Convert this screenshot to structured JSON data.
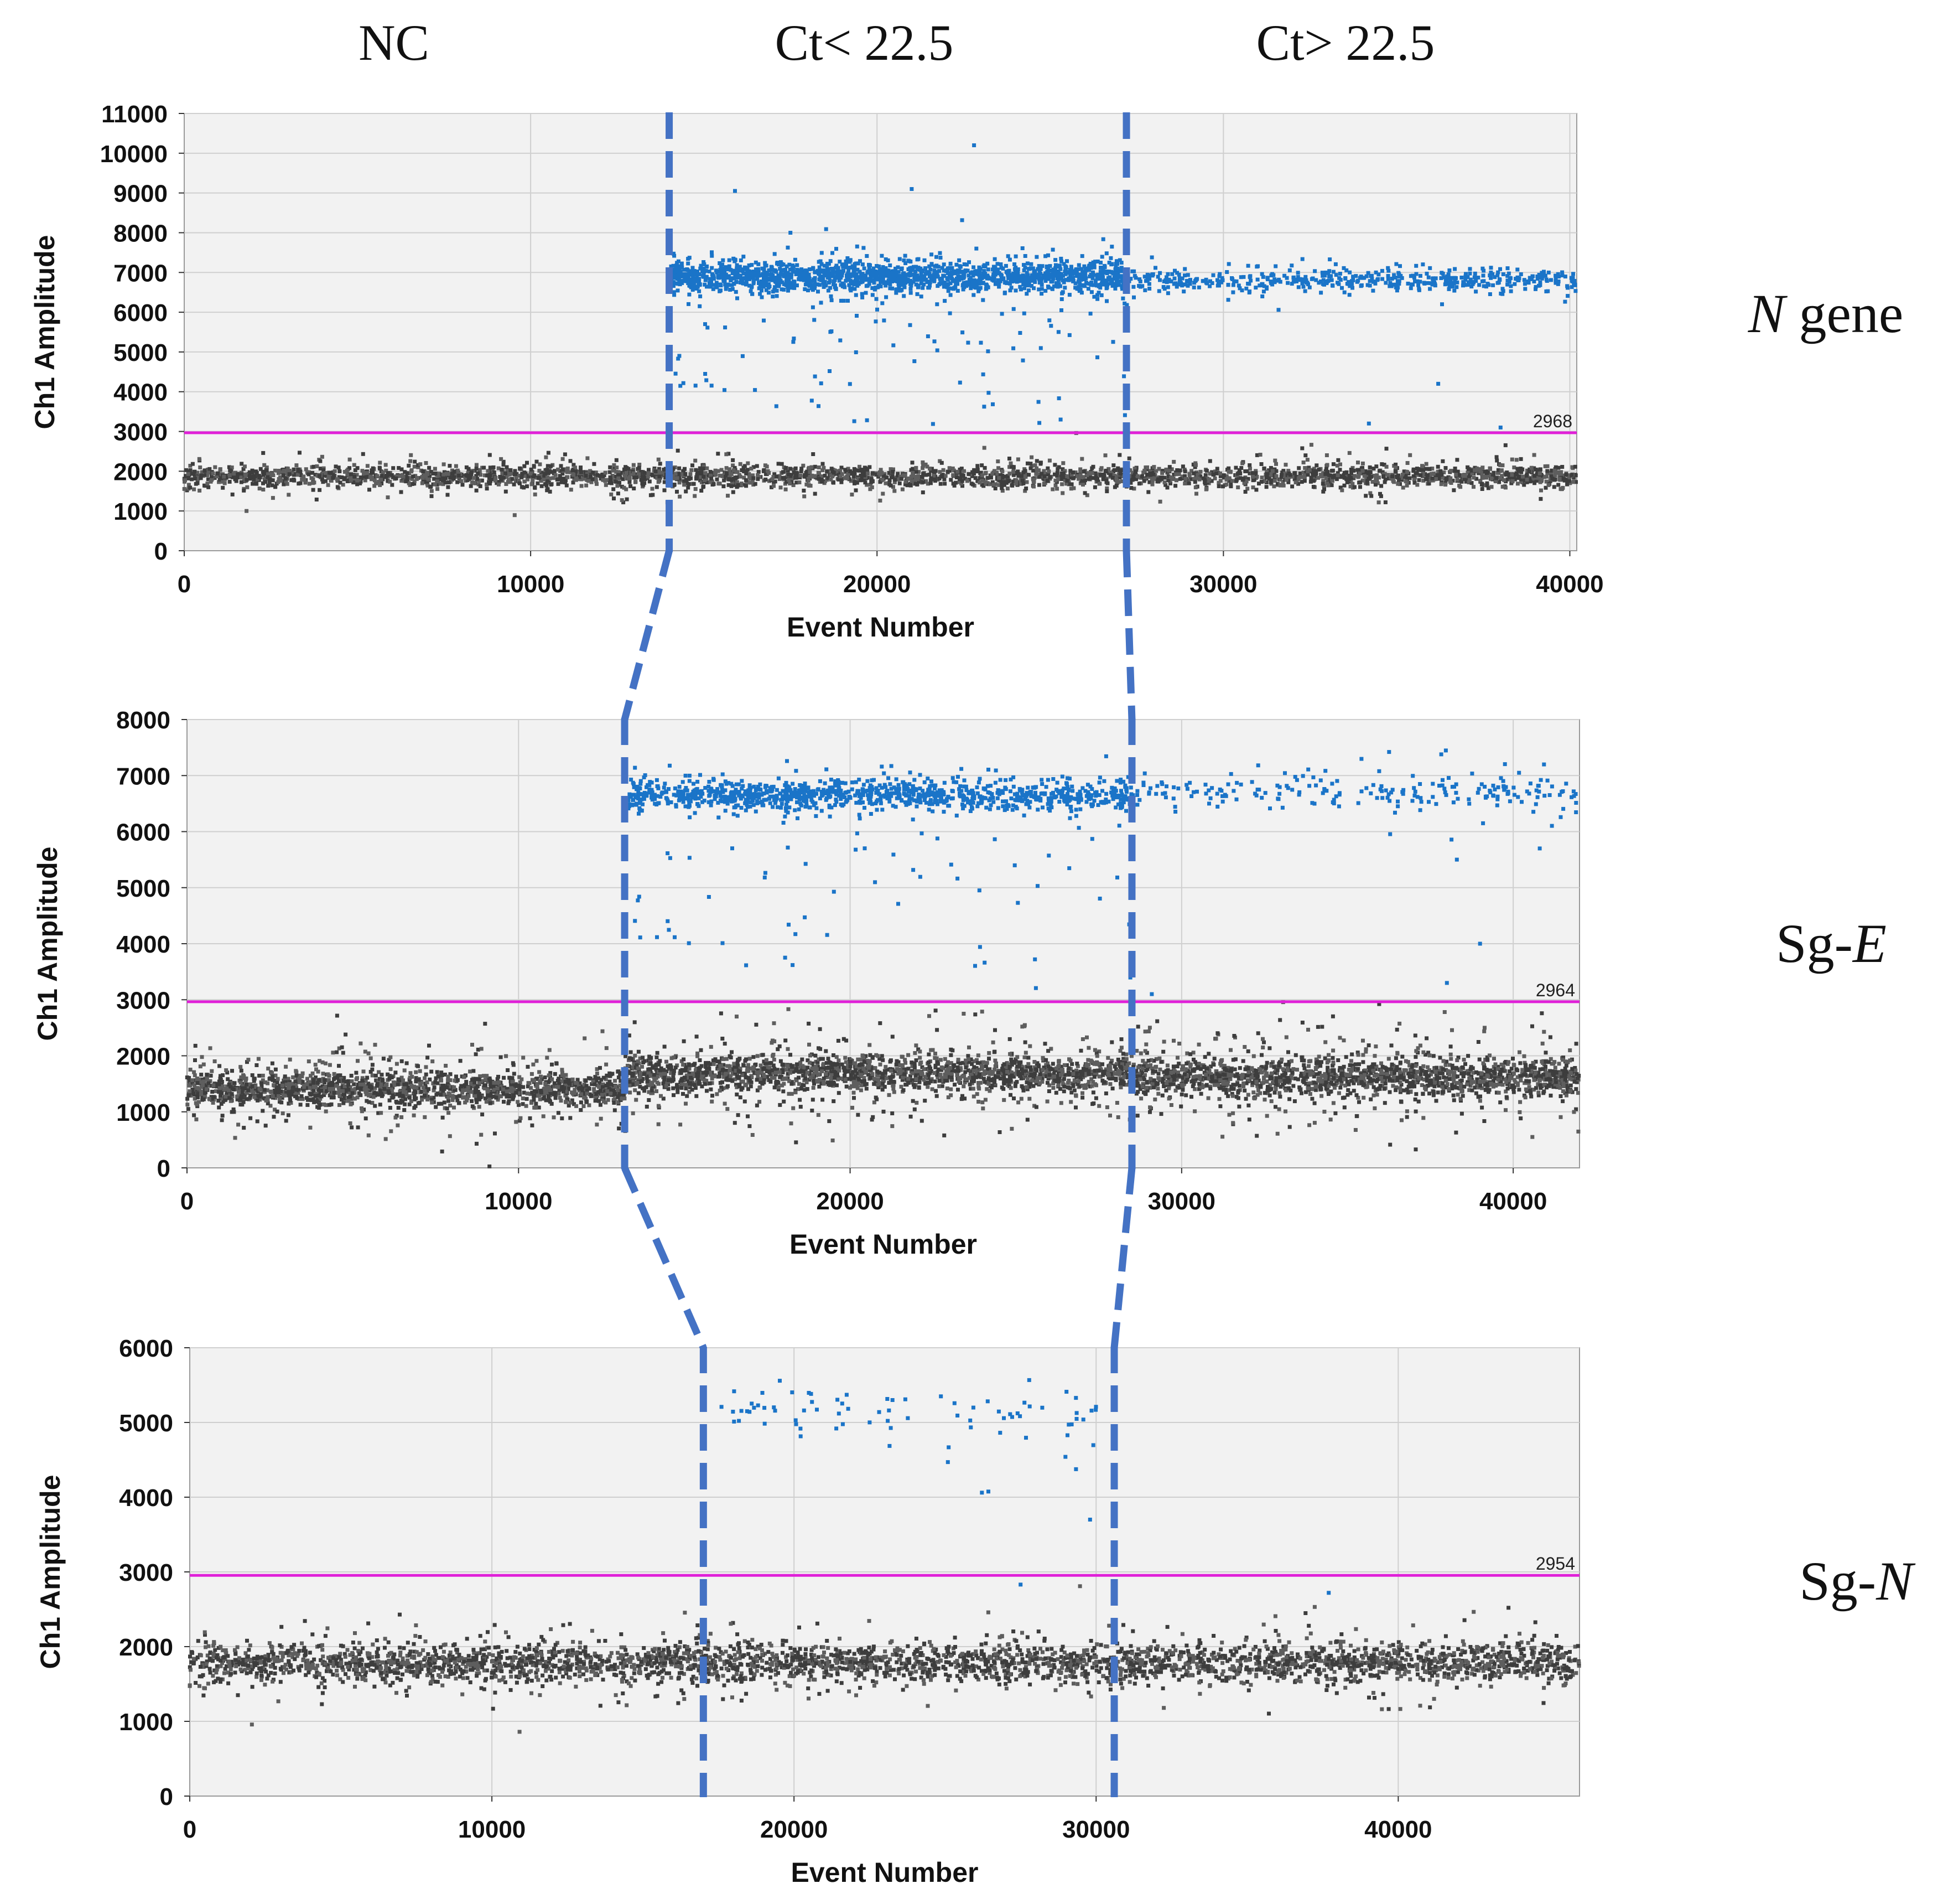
{
  "headers": {
    "nc": "NC",
    "ct_low": "Ct< 22.5",
    "ct_high": "Ct> 22.5"
  },
  "colors": {
    "positive": "#1a74c8",
    "negative": "#5e5e5e",
    "threshold": "#e020d8",
    "divider": "#4472c4",
    "plot_bg": "#f2f2f2",
    "grid": "#cfcfcf"
  },
  "chart_data": [
    {
      "type": "scatter",
      "title": "",
      "row_label": {
        "italic": "N",
        "plain": " gene"
      },
      "xlabel": "Event Number",
      "ylabel": "Ch1 Amplitude",
      "xlim": [
        0,
        40200
      ],
      "ylim": [
        0,
        11000
      ],
      "xticks": [
        0,
        10000,
        20000,
        30000,
        40000
      ],
      "yticks": [
        0,
        1000,
        2000,
        3000,
        4000,
        5000,
        6000,
        7000,
        8000,
        9000,
        10000,
        11000
      ],
      "ytick_labels": [
        "0",
        "1000",
        "2000",
        "3000",
        "4000",
        "5000",
        "6000",
        "7000",
        "8000",
        "9000",
        "10000",
        "11000"
      ],
      "threshold": 2968,
      "threshold_label": "2968",
      "well_boundaries": [
        14000,
        27200
      ],
      "negative_cluster": {
        "center": 1870,
        "spread": 180,
        "points": 3000
      },
      "positive_cluster": {
        "segments": [
          {
            "x0": 14000,
            "x1": 27200,
            "center": 6900,
            "spread": 220,
            "points": 1700
          },
          {
            "x0": 27200,
            "x1": 40200,
            "center": 6800,
            "spread": 160,
            "points": 500
          }
        ]
      },
      "intermediate_points": {
        "ymin": 3000,
        "ymax": 6100,
        "count": 70,
        "x0": 14000,
        "x1": 27200
      },
      "outliers": [
        [
          22800,
          10200
        ],
        [
          21000,
          9100
        ],
        [
          15900,
          9050
        ],
        [
          17500,
          8000
        ],
        [
          36200,
          4200
        ],
        [
          34200,
          3200
        ],
        [
          38000,
          3100
        ],
        [
          25300,
          3300
        ]
      ]
    },
    {
      "type": "scatter",
      "title": "",
      "row_label": {
        "italic": "E",
        "plain": "Sg-"
      },
      "xlabel": "Event Number",
      "ylabel": "Ch1 Amplitude",
      "xlim": [
        0,
        42000
      ],
      "ylim": [
        0,
        8000
      ],
      "xticks": [
        0,
        10000,
        20000,
        30000,
        40000
      ],
      "yticks": [
        0,
        1000,
        2000,
        3000,
        4000,
        5000,
        6000,
        7000,
        8000
      ],
      "ytick_labels": [
        "0",
        "1000",
        "2000",
        "3000",
        "4000",
        "5000",
        "6000",
        "7000",
        "8000"
      ],
      "threshold": 2964,
      "threshold_label": "2964",
      "well_boundaries": [
        13200,
        28500
      ],
      "negative_cluster_segments": [
        {
          "x0": 0,
          "x1": 13200,
          "center": 1400,
          "spread": 230,
          "points": 1600
        },
        {
          "x0": 13200,
          "x1": 28500,
          "center": 1680,
          "spread": 250,
          "points": 1900
        },
        {
          "x0": 28500,
          "x1": 42000,
          "center": 1620,
          "spread": 260,
          "points": 1700
        }
      ],
      "positive_cluster": {
        "segments": [
          {
            "x0": 13300,
            "x1": 28500,
            "center": 6650,
            "spread": 150,
            "points": 1100
          },
          {
            "x0": 28500,
            "x1": 42000,
            "center": 6700,
            "spread": 170,
            "points": 220
          }
        ]
      },
      "intermediate_points": {
        "ymin": 3000,
        "ymax": 6000,
        "count": 55,
        "x0": 13300,
        "x1": 28500
      },
      "outliers": [
        [
          39000,
          4000
        ],
        [
          38000,
          3300
        ],
        [
          38300,
          5500
        ],
        [
          40800,
          5700
        ],
        [
          29100,
          3100
        ]
      ]
    },
    {
      "type": "scatter",
      "title": "",
      "row_label": {
        "italic": "N",
        "plain": "Sg-"
      },
      "xlabel": "Event Number",
      "ylabel": "Ch1 Amplitude",
      "xlim": [
        0,
        46000
      ],
      "ylim": [
        0,
        6000
      ],
      "xticks": [
        0,
        10000,
        20000,
        30000,
        40000
      ],
      "yticks": [
        0,
        1000,
        2000,
        3000,
        4000,
        5000,
        6000
      ],
      "ytick_labels": [
        "0",
        "1000",
        "2000",
        "3000",
        "4000",
        "5000",
        "6000"
      ],
      "threshold": 2954,
      "threshold_label": "2954",
      "well_boundaries": [
        17000,
        30600
      ],
      "negative_cluster": {
        "center": 1780,
        "spread": 170,
        "points": 3400
      },
      "positive_cluster": {
        "segments": [
          {
            "x0": 17500,
            "x1": 30000,
            "center": 5150,
            "spread": 180,
            "points": 75
          }
        ]
      },
      "intermediate_points": {
        "ymin": 3700,
        "ymax": 4700,
        "count": 6,
        "x0": 24000,
        "x1": 30000
      },
      "outliers": [
        [
          27500,
          2830
        ],
        [
          37700,
          2720
        ],
        [
          29800,
          3700
        ]
      ]
    }
  ]
}
